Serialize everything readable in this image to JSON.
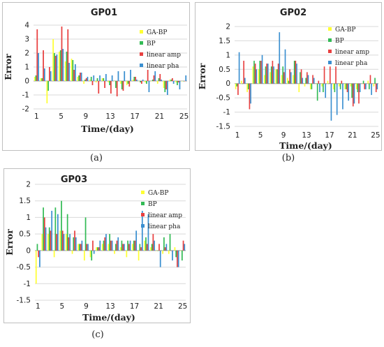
{
  "colors": {
    "GA-BP": "#ffff33",
    "BP": "#33bb55",
    "linear amp": "#e84040",
    "linear pha": "#3a8fd0"
  },
  "chart_data": [
    {
      "type": "bar",
      "caption": "(a)",
      "title": "GP01",
      "xlabel": "Time/(day)",
      "ylabel": "Error",
      "ylim": [
        -2,
        4
      ],
      "yticks": [
        -2,
        -1,
        0,
        1,
        2,
        3,
        4
      ],
      "xticks": [
        1,
        5,
        9,
        13,
        17,
        21,
        25
      ],
      "x": [
        1,
        2,
        3,
        4,
        5,
        6,
        7,
        8,
        9,
        10,
        11,
        12,
        13,
        14,
        15,
        16,
        17,
        18,
        19,
        20,
        21,
        22,
        23,
        24,
        25
      ],
      "legend": "top-right",
      "series": [
        {
          "name": "GA-BP",
          "values": [
            0.3,
            0.2,
            -1.6,
            3.0,
            2.1,
            1.4,
            1.6,
            0.3,
            -0.2,
            0.1,
            -0.1,
            0.2,
            -0.1,
            0.0,
            -0.2,
            -0.3,
            0.1,
            0.0,
            -0.1,
            0.0,
            -0.2,
            -0.5,
            0.1,
            -0.1,
            0.0
          ]
        },
        {
          "name": "BP",
          "values": [
            0.4,
            0.2,
            -0.7,
            2.0,
            2.2,
            2.1,
            1.5,
            0.4,
            0.1,
            0.3,
            0.2,
            0.2,
            -0.3,
            -0.5,
            -0.6,
            -0.2,
            0.3,
            -0.1,
            -0.2,
            0.1,
            0.2,
            -0.8,
            0.1,
            -0.3,
            0.0
          ]
        },
        {
          "name": "linear amp",
          "values": [
            3.7,
            2.2,
            1.0,
            1.8,
            3.9,
            3.7,
            0.8,
            0.6,
            0.2,
            -0.3,
            -0.9,
            -0.5,
            -0.9,
            -1.1,
            -0.7,
            -0.4,
            0.3,
            -0.2,
            0.8,
            0.4,
            0.5,
            -0.6,
            0.2,
            -0.1,
            0.0
          ]
        },
        {
          "name": "linear pha",
          "values": [
            2.0,
            0.9,
            0.7,
            1.9,
            2.3,
            1.3,
            1.2,
            0.6,
            0.3,
            0.4,
            0.4,
            0.5,
            0.4,
            0.7,
            0.7,
            0.8,
            0.1,
            0.1,
            -0.8,
            0.7,
            0.1,
            -1.0,
            -0.2,
            -0.6,
            0.4
          ]
        }
      ]
    },
    {
      "type": "bar",
      "caption": "(b)",
      "title": "GP02",
      "xlabel": "Time/(day)",
      "ylabel": "Error",
      "ylim": [
        -1.5,
        2
      ],
      "yticks": [
        -1.5,
        -1,
        -0.5,
        0,
        0.5,
        1,
        1.5,
        2
      ],
      "xticks": [
        1,
        5,
        9,
        13,
        17,
        21,
        25
      ],
      "x": [
        1,
        2,
        3,
        4,
        5,
        6,
        7,
        8,
        9,
        10,
        11,
        12,
        13,
        14,
        15,
        16,
        17,
        18,
        19,
        20,
        21,
        22,
        23,
        24,
        25
      ],
      "legend": "top-right",
      "series": [
        {
          "name": "GA-BP",
          "values": [
            -0.2,
            0.1,
            -0.3,
            0.6,
            0.5,
            0.3,
            0.4,
            0.5,
            0.3,
            0.2,
            0.3,
            -0.3,
            -0.1,
            -0.2,
            0.0,
            -0.1,
            0.1,
            -0.2,
            -0.1,
            -0.2,
            -0.1,
            -0.2,
            0.0,
            0.1,
            -0.1
          ]
        },
        {
          "name": "BP",
          "values": [
            -0.1,
            0.0,
            -0.2,
            0.8,
            0.8,
            0.6,
            0.6,
            0.5,
            0.6,
            0.1,
            0.8,
            0.4,
            0.2,
            -0.2,
            -0.6,
            -0.3,
            0.0,
            -0.3,
            -0.2,
            -0.2,
            -0.5,
            -0.3,
            0.1,
            -0.2,
            0.2
          ]
        },
        {
          "name": "linear amp",
          "values": [
            -0.4,
            0.8,
            -0.9,
            0.7,
            0.8,
            0.7,
            0.8,
            0.7,
            0.4,
            0.5,
            0.8,
            0.5,
            0.4,
            0.3,
            0.1,
            0.6,
            0.6,
            0.6,
            0.1,
            -0.3,
            -0.8,
            -0.7,
            -0.2,
            0.3,
            -0.3
          ]
        },
        {
          "name": "linear pha",
          "values": [
            1.1,
            0.2,
            -0.7,
            0.5,
            1.0,
            0.7,
            0.6,
            1.8,
            1.2,
            0.4,
            0.7,
            0.2,
            0.3,
            0.2,
            -0.3,
            -0.5,
            -1.3,
            -1.1,
            -0.9,
            -0.6,
            -0.7,
            -0.3,
            -0.2,
            -0.4,
            -0.2
          ]
        }
      ]
    },
    {
      "type": "bar",
      "caption": "(c)",
      "title": "GP03",
      "xlabel": "Time/(day)",
      "ylabel": "Error",
      "ylim": [
        -1.5,
        2
      ],
      "yticks": [
        -1.5,
        -1,
        -0.5,
        0,
        0.5,
        1,
        1.5,
        2
      ],
      "xticks": [
        1,
        5,
        9,
        13,
        17,
        21,
        25
      ],
      "x": [
        1,
        2,
        3,
        4,
        5,
        6,
        7,
        8,
        9,
        10,
        11,
        12,
        13,
        14,
        15,
        16,
        17,
        18,
        19,
        20,
        21,
        22,
        23,
        24,
        25
      ],
      "legend": "top-right",
      "series": [
        {
          "name": "GA-BP",
          "values": [
            -1.0,
            0.5,
            0.5,
            -0.2,
            0.6,
            0.5,
            -0.1,
            0.2,
            -0.3,
            -0.2,
            0.1,
            0.2,
            0.2,
            -0.1,
            0.1,
            -0.2,
            0.2,
            -0.3,
            0.3,
            0.1,
            0.0,
            -0.1,
            -0.1,
            0.1,
            0.0
          ]
        },
        {
          "name": "BP",
          "values": [
            0.2,
            1.3,
            0.7,
            1.3,
            1.5,
            1.1,
            0.4,
            0.2,
            1.0,
            -0.3,
            0.1,
            0.3,
            0.5,
            0.2,
            0.3,
            0.3,
            0.3,
            0.2,
            0.4,
            0.2,
            0.0,
            0.4,
            0.5,
            -0.2,
            -0.3
          ]
        },
        {
          "name": "linear amp",
          "values": [
            -0.2,
            1.0,
            0.6,
            0.5,
            0.6,
            0.4,
            0.6,
            0.2,
            0.2,
            0.3,
            0.1,
            0.4,
            0.3,
            0.3,
            0.2,
            0.2,
            0.3,
            0.1,
            0.2,
            0.5,
            0.2,
            0.1,
            0.0,
            -0.5,
            0.3
          ]
        },
        {
          "name": "linear pha",
          "values": [
            -0.5,
            0.7,
            1.2,
            1.1,
            0.5,
            0.5,
            0.4,
            0.3,
            0.2,
            -0.1,
            0.3,
            0.5,
            0.3,
            0.4,
            0.2,
            0.3,
            0.6,
            1.2,
            1.1,
            0.3,
            -0.5,
            0.2,
            -0.3,
            -0.5,
            0.2
          ]
        }
      ]
    }
  ]
}
